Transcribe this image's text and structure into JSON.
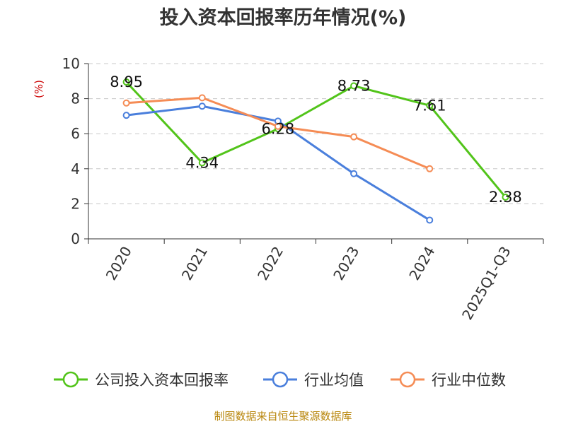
{
  "chart_data": {
    "type": "line",
    "title": "投入资本回报率历年情况(%)",
    "ylabel": "(%)",
    "xlabel": "",
    "categories": [
      "2020",
      "2021",
      "2022",
      "2023",
      "2024",
      "2025Q1-Q3"
    ],
    "ylim": [
      0,
      10
    ],
    "yticks": [
      0,
      2,
      4,
      6,
      8,
      10
    ],
    "grid": true,
    "legend_position": "bottom",
    "series": [
      {
        "name": "公司投入资本回报率",
        "color": "#52c41a",
        "values": [
          8.95,
          4.34,
          6.28,
          8.73,
          7.61,
          2.38
        ],
        "show_labels": true
      },
      {
        "name": "行业均值",
        "color": "#4a7fdc",
        "values": [
          7.05,
          7.57,
          6.72,
          3.72,
          1.07,
          null
        ],
        "show_labels": false
      },
      {
        "name": "行业中位数",
        "color": "#f58c55",
        "values": [
          7.75,
          8.05,
          6.42,
          5.82,
          4.0,
          null
        ],
        "show_labels": false
      }
    ]
  },
  "footer": {
    "source": "制图数据来自恒生聚源数据库"
  }
}
